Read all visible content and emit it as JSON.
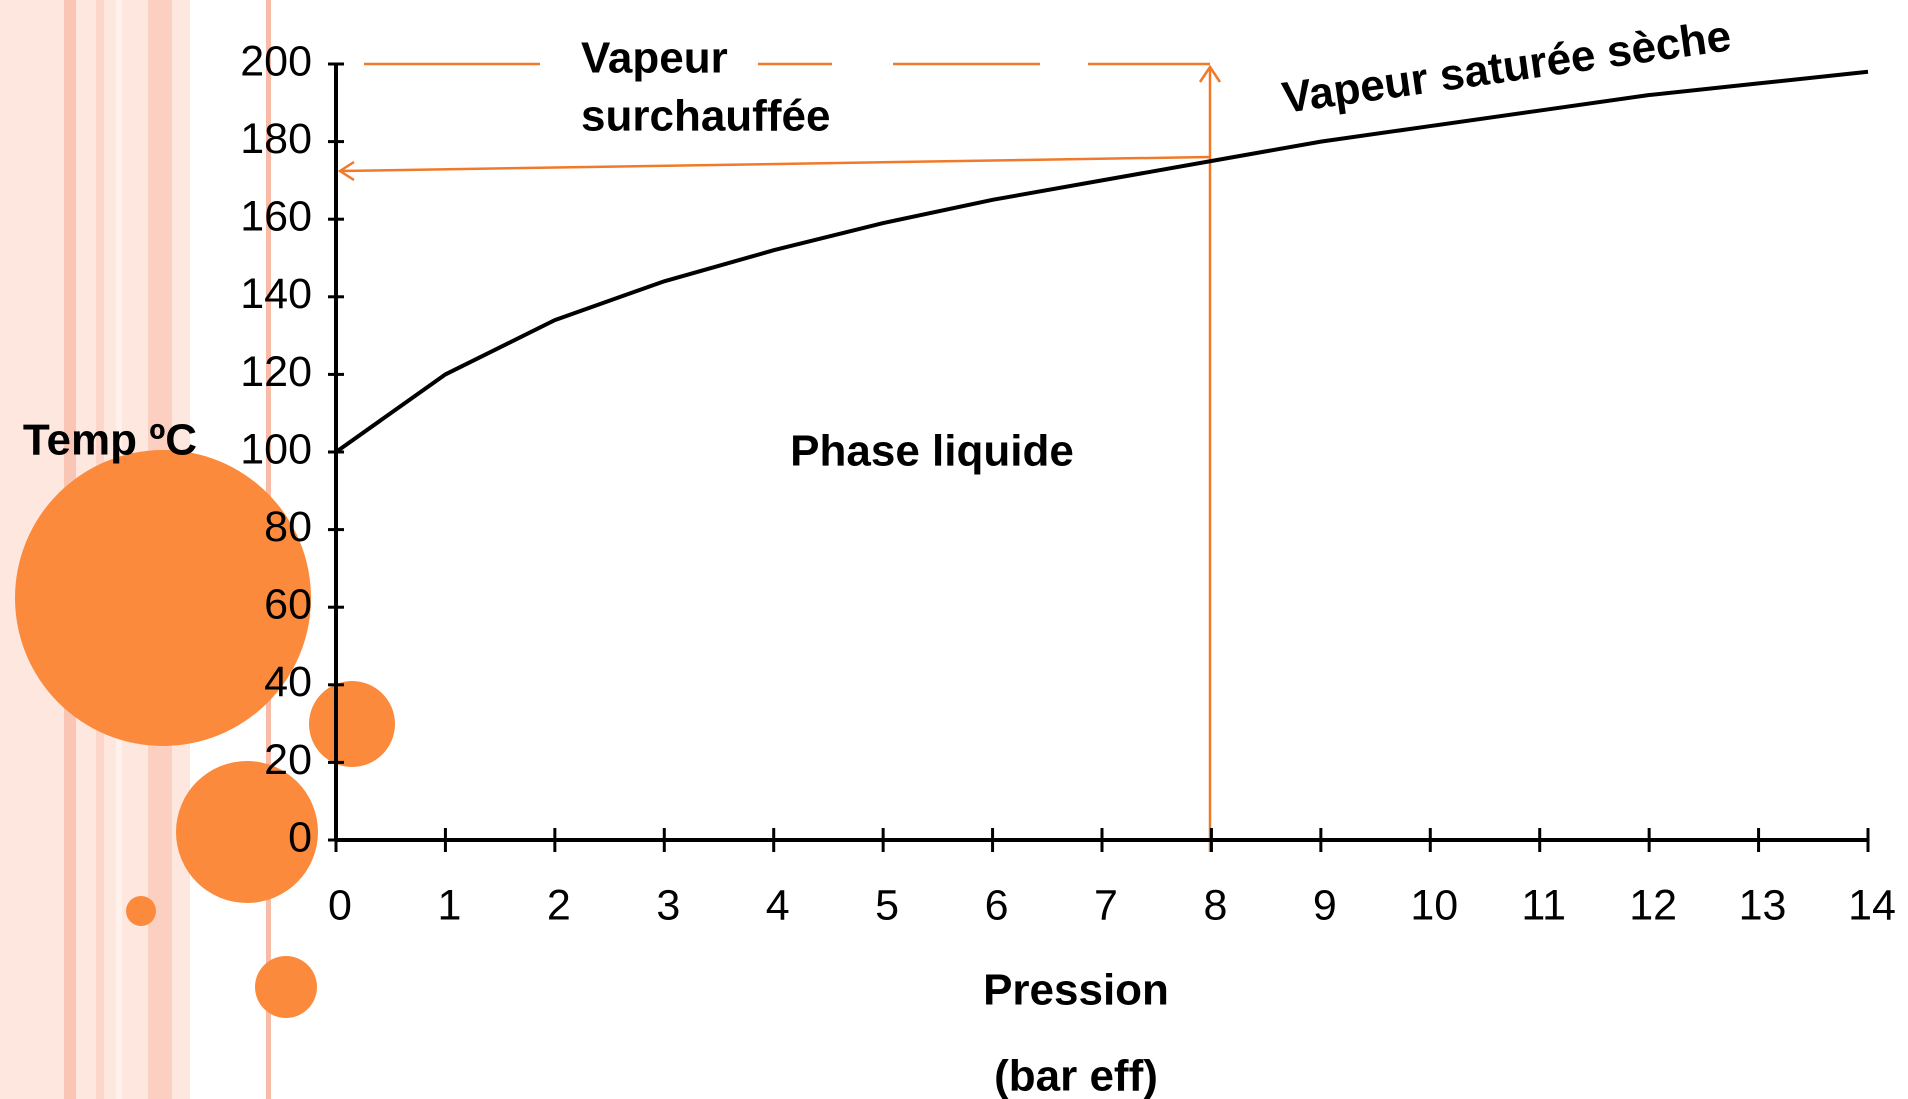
{
  "chart_data": {
    "type": "line",
    "ylabel": "Temp ºC",
    "xlabel": [
      "Pression",
      "(bar eff)"
    ],
    "annotations": [
      "Vapeur",
      "surchauffée",
      "Phase liquide"
    ],
    "x": [
      0,
      1,
      2,
      3,
      4,
      5,
      6,
      7,
      8,
      9,
      10,
      11,
      12,
      13,
      14
    ],
    "series": [
      {
        "name": "Vapeur saturée sèche",
        "color": "#000000",
        "values": [
          100,
          120,
          134,
          144,
          152,
          159,
          165,
          170,
          175,
          180,
          184,
          188,
          192,
          195,
          198
        ]
      }
    ],
    "xlim": [
      0,
      14
    ],
    "xticks": [
      0,
      1,
      2,
      3,
      4,
      5,
      6,
      7,
      8,
      9,
      10,
      11,
      12,
      13,
      14
    ],
    "ylim": [
      0,
      200
    ],
    "yticks": [
      0,
      20,
      40,
      60,
      80,
      100,
      120,
      140,
      160,
      180,
      200
    ],
    "grid": false
  }
}
